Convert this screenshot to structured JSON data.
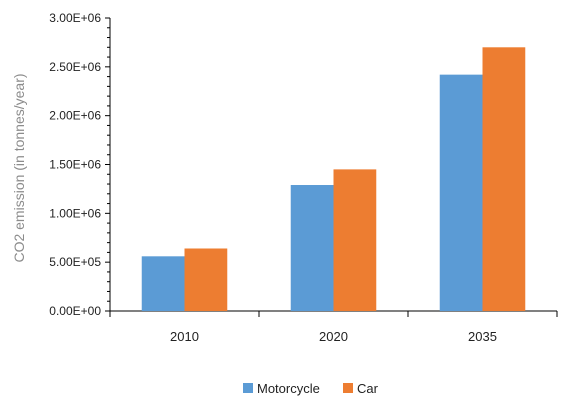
{
  "chart_data": {
    "type": "bar",
    "title": "",
    "xlabel": "",
    "ylabel": "CO2 emission (in tonnes/year)",
    "categories": [
      "2010",
      "2020",
      "2035"
    ],
    "series": [
      {
        "name": "Motorcycle",
        "color": "#5b9bd5",
        "values": [
          560000,
          1290000,
          2420000
        ]
      },
      {
        "name": "Car",
        "color": "#ed7d31",
        "values": [
          640000,
          1450000,
          2700000
        ]
      }
    ],
    "ylim": [
      0,
      3000000
    ],
    "y_ticks": [
      "0.00E+00",
      "5.00E+05",
      "1.00E+06",
      "1.50E+06",
      "2.00E+06",
      "2.50E+06",
      "3.00E+06"
    ],
    "grid": false,
    "legend": "bottom"
  }
}
